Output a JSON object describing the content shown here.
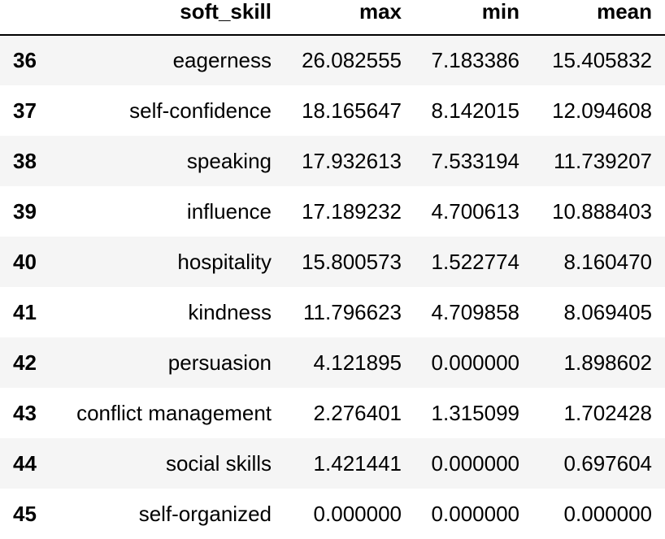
{
  "table": {
    "columns": {
      "index": "",
      "soft_skill": "soft_skill",
      "max": "max",
      "min": "min",
      "mean": "mean"
    },
    "rows": [
      {
        "index": "36",
        "soft_skill": "eagerness",
        "max": "26.082555",
        "min": "7.183386",
        "mean": "15.405832"
      },
      {
        "index": "37",
        "soft_skill": "self-confidence",
        "max": "18.165647",
        "min": "8.142015",
        "mean": "12.094608"
      },
      {
        "index": "38",
        "soft_skill": "speaking",
        "max": "17.932613",
        "min": "7.533194",
        "mean": "11.739207"
      },
      {
        "index": "39",
        "soft_skill": "influence",
        "max": "17.189232",
        "min": "4.700613",
        "mean": "10.888403"
      },
      {
        "index": "40",
        "soft_skill": "hospitality",
        "max": "15.800573",
        "min": "1.522774",
        "mean": "8.160470"
      },
      {
        "index": "41",
        "soft_skill": "kindness",
        "max": "11.796623",
        "min": "4.709858",
        "mean": "8.069405"
      },
      {
        "index": "42",
        "soft_skill": "persuasion",
        "max": "4.121895",
        "min": "0.000000",
        "mean": "1.898602"
      },
      {
        "index": "43",
        "soft_skill": "conflict management",
        "max": "2.276401",
        "min": "1.315099",
        "mean": "1.702428"
      },
      {
        "index": "44",
        "soft_skill": "social skills",
        "max": "1.421441",
        "min": "0.000000",
        "mean": "0.697604"
      },
      {
        "index": "45",
        "soft_skill": "self-organized",
        "max": "0.000000",
        "min": "0.000000",
        "mean": "0.000000"
      }
    ]
  }
}
